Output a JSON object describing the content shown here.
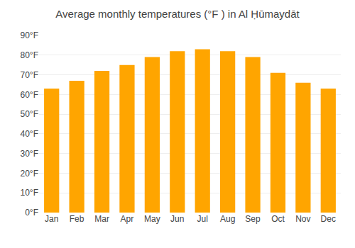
{
  "chart_data": {
    "type": "bar",
    "title": "Average monthly temperatures (°F ) in Al Ḥūmaydāt",
    "categories": [
      "Jan",
      "Feb",
      "Mar",
      "Apr",
      "May",
      "Jun",
      "Jul",
      "Aug",
      "Sep",
      "Oct",
      "Nov",
      "Dec"
    ],
    "values": [
      63,
      67,
      72,
      75,
      79,
      82,
      83,
      82,
      79,
      71,
      66,
      63
    ],
    "color": "#FFA500",
    "ylim": [
      0,
      90
    ],
    "yticks": [
      {
        "value": 0,
        "label": "0°F"
      },
      {
        "value": 10,
        "label": "10°F"
      },
      {
        "value": 20,
        "label": "20°F"
      },
      {
        "value": 30,
        "label": "30°F"
      },
      {
        "value": 40,
        "label": "40°F"
      },
      {
        "value": 50,
        "label": "50°F"
      },
      {
        "value": 60,
        "label": "60°F"
      },
      {
        "value": 70,
        "label": "70°F"
      },
      {
        "value": 80,
        "label": "80°F"
      },
      {
        "value": 90,
        "label": "90°F"
      }
    ],
    "grid": true
  }
}
